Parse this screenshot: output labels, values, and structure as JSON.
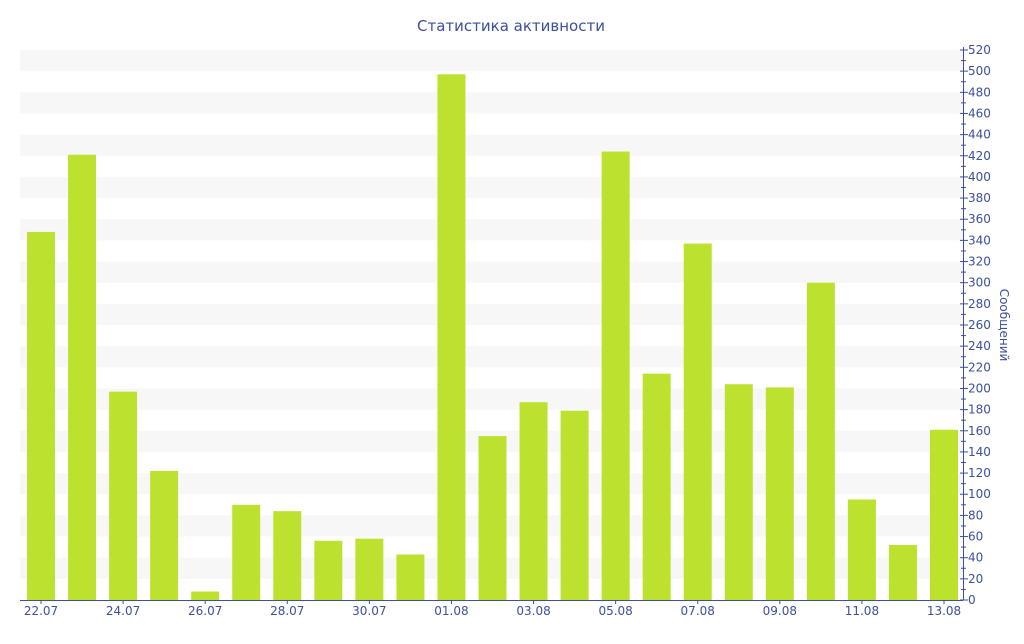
{
  "chart_data": {
    "type": "bar",
    "title": "Статистика активности",
    "xlabel": "",
    "ylabel": "Сообщений",
    "ylim": [
      0,
      520
    ],
    "y_major_step": 20,
    "y_minor_step": 10,
    "grid": "alternating horizontal bands",
    "y_axis_position": "right",
    "categories": [
      "22.07",
      "23.07",
      "24.07",
      "25.07",
      "26.07",
      "27.07",
      "28.07",
      "29.07",
      "30.07",
      "31.07",
      "01.08",
      "02.08",
      "03.08",
      "04.08",
      "05.08",
      "06.08",
      "07.08",
      "08.08",
      "09.08",
      "10.08",
      "11.08",
      "12.08",
      "13.08"
    ],
    "x_tick_labels_shown_every": 2,
    "values": [
      348,
      421,
      197,
      122,
      8,
      90,
      84,
      56,
      58,
      43,
      497,
      155,
      187,
      179,
      424,
      214,
      337,
      204,
      201,
      300,
      95,
      52,
      161
    ],
    "colors": {
      "bar": "#bce22f",
      "axis": "#3d4f9f",
      "band": "#f7f7f7"
    }
  }
}
